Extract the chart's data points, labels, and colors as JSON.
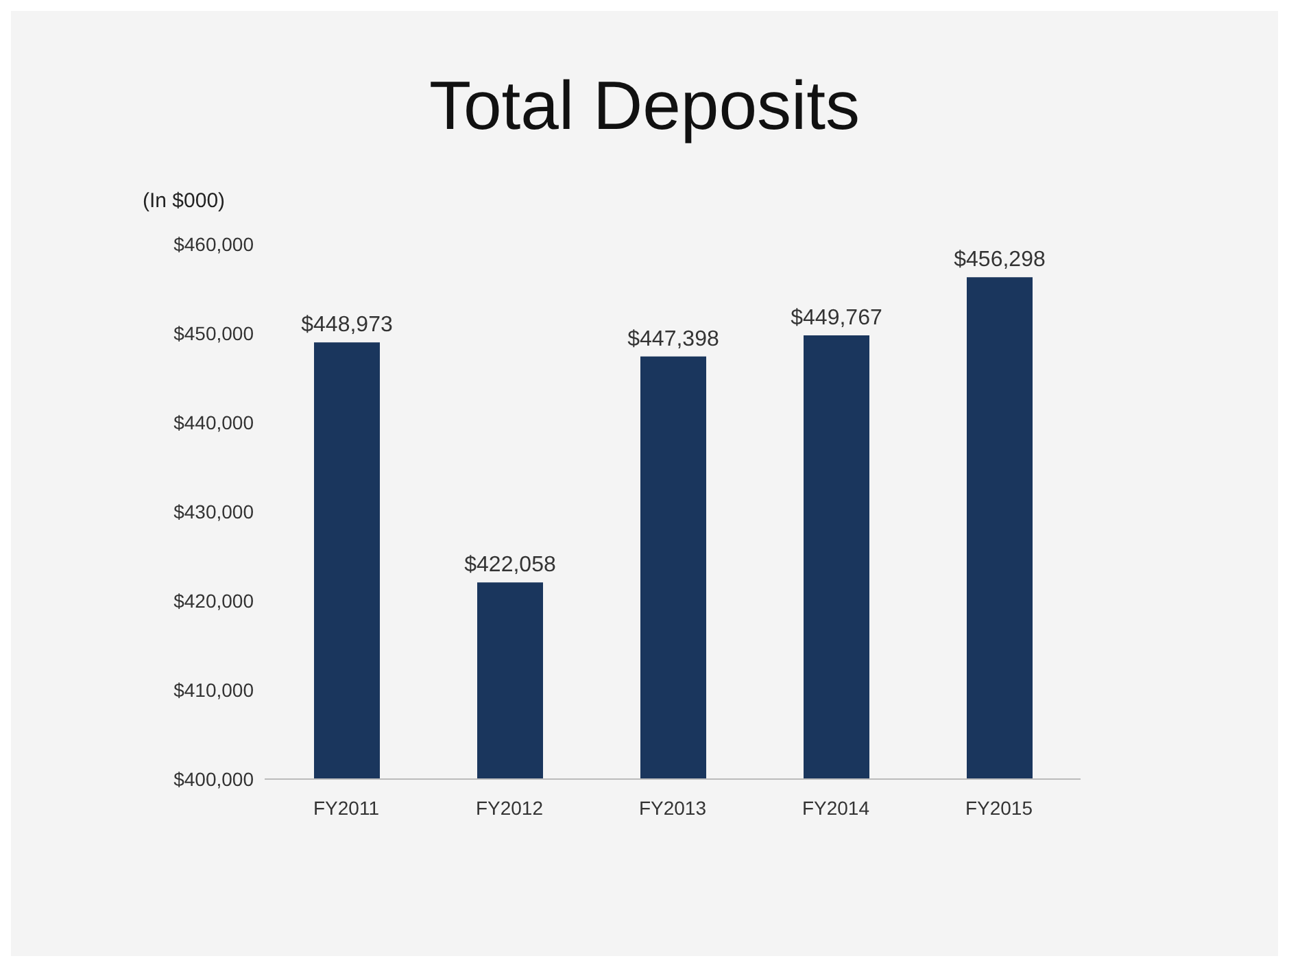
{
  "chart_data": {
    "type": "bar",
    "title": "Total Deposits",
    "ylabel": "(In $000)",
    "categories": [
      "FY2011",
      "FY2012",
      "FY2013",
      "FY2014",
      "FY2015"
    ],
    "values": [
      448973,
      422058,
      447398,
      449767,
      456298
    ],
    "value_labels": [
      "$448,973",
      "$422,058",
      "$447,398",
      "$449,767",
      "$456,298"
    ],
    "color": "#1a365d",
    "ylim": [
      400000,
      460000
    ],
    "yticks": [
      {
        "value": 400000,
        "label": "$400,000"
      },
      {
        "value": 410000,
        "label": "$410,000"
      },
      {
        "value": 420000,
        "label": "$420,000"
      },
      {
        "value": 430000,
        "label": "$430,000"
      },
      {
        "value": 440000,
        "label": "$440,000"
      },
      {
        "value": 450000,
        "label": "$450,000"
      },
      {
        "value": 460000,
        "label": "$460,000"
      }
    ],
    "grid": false,
    "legend": false
  }
}
